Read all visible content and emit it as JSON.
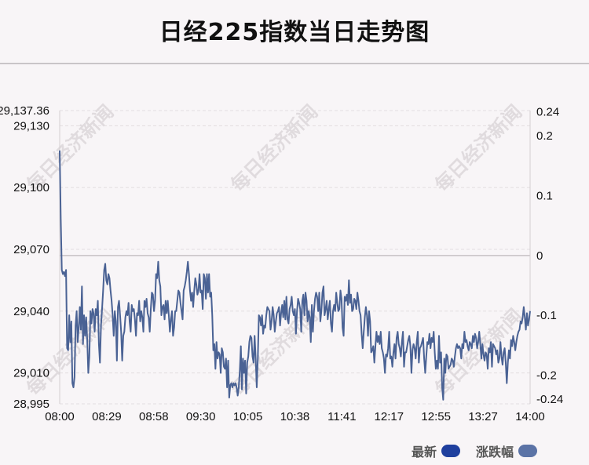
{
  "header": {
    "title": "日经225指数当日走势图"
  },
  "watermark": {
    "text": "每日经济新闻"
  },
  "legend": {
    "items": [
      {
        "label": "最新",
        "color": "#1f3f9e"
      },
      {
        "label": "涨跌幅",
        "color": "#5b73a6"
      }
    ]
  },
  "chart_data": {
    "type": "line",
    "title": "日经225指数当日走势图",
    "line_color": "#4a6294",
    "x_ticks": [
      "08:00",
      "08:29",
      "08:58",
      "09:30",
      "10:05",
      "10:38",
      "11:41",
      "12:17",
      "12:55",
      "13:27",
      "14:00"
    ],
    "y_left": {
      "ticks": [
        "29,137.36",
        "29,130",
        "29,100",
        "29,070",
        "29,040",
        "29,010",
        "28,995"
      ],
      "tick_values": [
        29137.36,
        29130,
        29100,
        29070,
        29040,
        29010,
        28995
      ],
      "range": [
        28995,
        29137.36
      ]
    },
    "y_right": {
      "ticks": [
        "0.24",
        "0.2",
        "0.1",
        "0",
        "-0.1",
        "-0.2",
        "-0.24"
      ],
      "tick_values": [
        0.24,
        0.2,
        0.1,
        0,
        -0.1,
        -0.2,
        -0.24
      ]
    },
    "baseline_value": 29067,
    "series": [
      {
        "values": [
          29118,
          29085,
          29060,
          29058,
          29059,
          29057,
          29060,
          29022,
          29021,
          29038,
          29025,
          29035,
          29005,
          29003,
          29008,
          29033,
          29040,
          29025,
          29032,
          29042,
          29031,
          29052,
          29024,
          29038,
          29028,
          29037,
          29026,
          29010,
          29018,
          29040,
          29034,
          29041,
          29039,
          29030,
          29041,
          29038,
          29045,
          29024,
          29015,
          29033,
          29041,
          29050,
          29060,
          29063,
          29055,
          29053,
          29058,
          29056,
          29050,
          29045,
          29038,
          29028,
          29040,
          29035,
          29016,
          29042,
          29045,
          29038,
          29030,
          29016,
          29028,
          29030,
          29037,
          29040,
          29038,
          29044,
          29035,
          29030,
          29043,
          29040,
          29041,
          29036,
          29028,
          29039,
          29038,
          29045,
          29035,
          29040,
          29037,
          29030,
          29045,
          29042,
          29046,
          29039,
          29037,
          29030,
          29041,
          29049,
          29048,
          29040,
          29045,
          29058,
          29056,
          29064,
          29055,
          29052,
          29038,
          29042,
          29043,
          29036,
          29045,
          29039,
          29045,
          29038,
          29030,
          29036,
          29040,
          29028,
          29032,
          29040,
          29040,
          29045,
          29050,
          29049,
          29044,
          29040,
          29036,
          29050,
          29052,
          29055,
          29059,
          29064,
          29058,
          29050,
          29045,
          29049,
          29042,
          29050,
          29056,
          29053,
          29048,
          29050,
          29058,
          29049,
          29050,
          29041,
          29058,
          29056,
          29046,
          29058,
          29049,
          29058,
          29047,
          29049,
          29038,
          29021,
          29024,
          29012,
          29025,
          29017,
          29020,
          29019,
          29010,
          29022,
          29020,
          29013,
          29012,
          29017,
          29003,
          29016,
          28998,
          29004,
          29005,
          29003,
          29005,
          29004,
          29005,
          29003,
          28999,
          29003,
          29011,
          29023,
          29002,
          29017,
          29010,
          29016,
          29000,
          29015,
          29018,
          29025,
          29028,
          29027,
          29018,
          29015,
          29028,
          29017,
          29003,
          29017,
          29038,
          29037,
          29033,
          29038,
          29029,
          29033,
          29032,
          29038,
          29042,
          29041,
          29040,
          29031,
          29035,
          29042,
          29038,
          29030,
          29035,
          29039,
          29040,
          29042,
          29033,
          29039,
          29043,
          29037,
          29045,
          29036,
          29047,
          29036,
          29034,
          29041,
          29043,
          29047,
          29040,
          29038,
          29041,
          29029,
          29040,
          29046,
          29044,
          29041,
          29030,
          29045,
          29048,
          29038,
          29049,
          29045,
          29035,
          29040,
          29037,
          29025,
          29043,
          29030,
          29040,
          29046,
          29049,
          29047,
          29040,
          29049,
          29035,
          29040,
          29049,
          29052,
          29038,
          29041,
          29045,
          29036,
          29041,
          29045,
          29034,
          29030,
          29040,
          29043,
          29040,
          29049,
          29044,
          29040,
          29041,
          29050,
          29046,
          29032,
          29028,
          29047,
          29045,
          29048,
          29043,
          29055,
          29044,
          29048,
          29040,
          29041,
          29046,
          29045,
          29041,
          29049,
          29045,
          29040,
          29038,
          29029,
          29022,
          29030,
          29037,
          29042,
          29038,
          29028,
          29040,
          29035,
          29020,
          29021,
          29023,
          29015,
          29023,
          29030,
          29025,
          29028,
          29024,
          29030,
          29022,
          29020,
          29017,
          29010,
          29019,
          29018,
          29022,
          29030,
          29017,
          29018,
          29013,
          29020,
          29024,
          29017,
          29027,
          29030,
          29024,
          29022,
          29018,
          29025,
          29030,
          29013,
          29020,
          29020,
          29023,
          29026,
          29028,
          29023,
          29010,
          29021,
          29024,
          29022,
          29017,
          29025,
          29030,
          29015,
          29022,
          29023,
          29025,
          29027,
          29017,
          29010,
          29018,
          29025,
          29024,
          29029,
          29022,
          29027,
          29025,
          29030,
          29020,
          29012,
          29016,
          29012,
          29028,
          29015,
          29020,
          29003,
          28997,
          29017,
          29010,
          29019,
          29018,
          29012,
          29013,
          29014,
          29017,
          29016,
          29013,
          29018,
          29022,
          29024,
          29022,
          29023,
          29022,
          29017,
          29024,
          29022,
          29030,
          29025,
          29026,
          29023,
          29021,
          29025,
          29024,
          29022,
          29028,
          29025,
          29029,
          29027,
          29022,
          29025,
          29030,
          29024,
          29017,
          29024,
          29019,
          29016,
          29020,
          29019,
          29012,
          29022,
          29020,
          29025,
          29013,
          29024,
          29023,
          29022,
          29019,
          29021,
          29015,
          29017,
          29025,
          29018,
          29014,
          29020,
          29022,
          29015,
          29005,
          29015,
          29021,
          29017,
          29026,
          29023,
          29028,
          29025,
          29021,
          29025,
          29028,
          29030,
          29031,
          29035,
          29034,
          29037,
          29042,
          29037,
          29031,
          29039,
          29033,
          29036,
          29040
        ]
      }
    ]
  }
}
